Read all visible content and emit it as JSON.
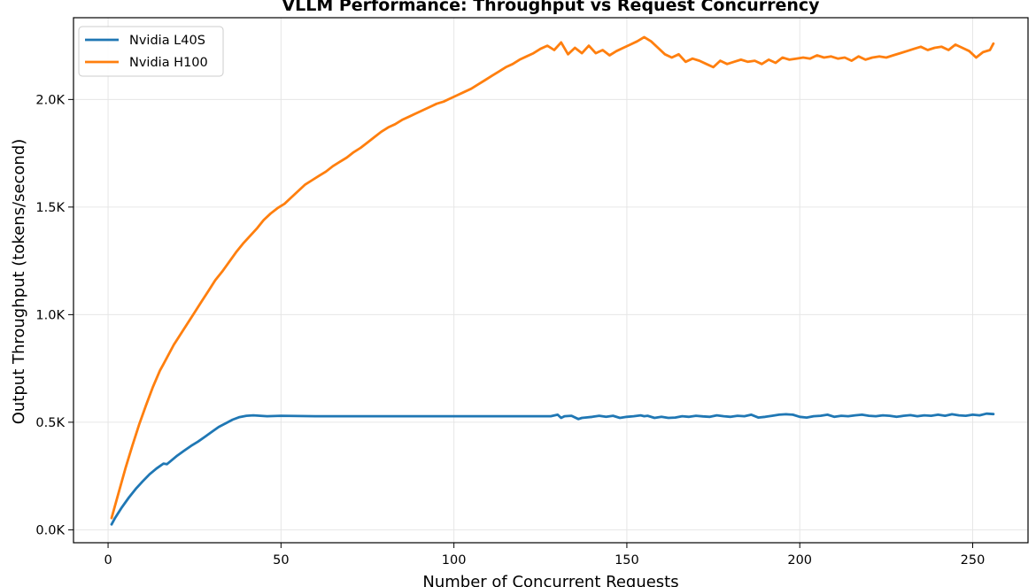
{
  "chart_data": {
    "type": "line",
    "title": "VLLM Performance: Throughput vs Request Concurrency",
    "xlabel": "Number of Concurrent Requests",
    "ylabel": "Output Throughput (tokens/second)",
    "xlim": [
      -10,
      266
    ],
    "ylim": [
      -60,
      2380
    ],
    "xticks": [
      0,
      50,
      100,
      150,
      200,
      250
    ],
    "xtick_labels": [
      "0",
      "50",
      "100",
      "150",
      "200",
      "250"
    ],
    "yticks": [
      0,
      500,
      1000,
      1500,
      2000
    ],
    "ytick_labels": [
      "0.0K",
      "0.5K",
      "1.0K",
      "1.5K",
      "2.0K"
    ],
    "grid": true,
    "legend_position": "top-left",
    "series": [
      {
        "name": "Nvidia L40S",
        "color": "#1f77b4",
        "x": [
          1,
          2,
          4,
          6,
          8,
          10,
          12,
          14,
          16,
          17,
          18,
          20,
          22,
          24,
          26,
          28,
          30,
          32,
          34,
          36,
          38,
          40,
          42,
          44,
          46,
          50,
          60,
          70,
          80,
          90,
          100,
          110,
          120,
          128,
          130,
          131,
          132,
          134,
          136,
          137,
          138,
          140,
          142,
          144,
          146,
          148,
          150,
          152,
          154,
          155,
          156,
          158,
          160,
          162,
          164,
          166,
          168,
          170,
          172,
          174,
          176,
          178,
          180,
          182,
          184,
          186,
          188,
          190,
          192,
          194,
          196,
          198,
          200,
          202,
          204,
          206,
          208,
          210,
          212,
          214,
          216,
          218,
          220,
          222,
          224,
          226,
          228,
          230,
          232,
          234,
          236,
          238,
          240,
          242,
          244,
          246,
          248,
          250,
          252,
          254,
          256
        ],
        "y": [
          25,
          55,
          105,
          150,
          190,
          225,
          258,
          285,
          308,
          305,
          318,
          345,
          368,
          390,
          410,
          432,
          455,
          478,
          495,
          512,
          524,
          530,
          532,
          530,
          528,
          530,
          528,
          528,
          528,
          528,
          528,
          528,
          528,
          528,
          535,
          520,
          528,
          530,
          515,
          520,
          522,
          525,
          530,
          525,
          530,
          520,
          525,
          528,
          532,
          528,
          530,
          520,
          525,
          520,
          522,
          528,
          525,
          530,
          527,
          525,
          532,
          528,
          525,
          530,
          528,
          535,
          522,
          525,
          530,
          535,
          537,
          535,
          525,
          522,
          528,
          530,
          535,
          525,
          530,
          528,
          532,
          535,
          530,
          528,
          532,
          530,
          525,
          530,
          533,
          528,
          532,
          530,
          535,
          530,
          537,
          532,
          530,
          535,
          532,
          540,
          538
        ]
      },
      {
        "name": "Nvidia H100",
        "color": "#ff7f0e",
        "x": [
          1,
          3,
          5,
          7,
          9,
          11,
          13,
          15,
          16,
          17,
          19,
          21,
          23,
          25,
          27,
          29,
          31,
          33,
          35,
          37,
          39,
          41,
          43,
          45,
          47,
          49,
          51,
          53,
          55,
          57,
          59,
          61,
          63,
          65,
          67,
          69,
          71,
          73,
          75,
          77,
          79,
          81,
          83,
          85,
          87,
          89,
          91,
          93,
          95,
          97,
          99,
          101,
          103,
          105,
          107,
          109,
          111,
          113,
          115,
          117,
          119,
          121,
          123,
          125,
          127,
          129,
          131,
          133,
          135,
          137,
          139,
          141,
          143,
          145,
          147,
          149,
          151,
          153,
          155,
          157,
          159,
          161,
          163,
          165,
          167,
          169,
          171,
          173,
          175,
          177,
          179,
          181,
          183,
          185,
          187,
          189,
          191,
          193,
          195,
          197,
          199,
          201,
          203,
          205,
          207,
          209,
          211,
          213,
          215,
          217,
          219,
          221,
          223,
          225,
          227,
          229,
          231,
          233,
          235,
          237,
          239,
          241,
          243,
          245,
          247,
          249,
          251,
          253,
          255,
          256
        ],
        "y": [
          55,
          170,
          285,
          390,
          490,
          580,
          665,
          740,
          770,
          800,
          860,
          910,
          960,
          1010,
          1060,
          1110,
          1160,
          1200,
          1245,
          1290,
          1330,
          1365,
          1400,
          1440,
          1470,
          1495,
          1515,
          1545,
          1575,
          1605,
          1625,
          1645,
          1665,
          1690,
          1710,
          1730,
          1755,
          1775,
          1800,
          1825,
          1850,
          1870,
          1885,
          1905,
          1920,
          1935,
          1950,
          1965,
          1980,
          1990,
          2005,
          2020,
          2035,
          2050,
          2070,
          2090,
          2110,
          2130,
          2150,
          2165,
          2185,
          2200,
          2215,
          2235,
          2250,
          2230,
          2265,
          2210,
          2240,
          2215,
          2250,
          2215,
          2230,
          2205,
          2225,
          2240,
          2255,
          2270,
          2290,
          2270,
          2240,
          2210,
          2195,
          2210,
          2175,
          2190,
          2180,
          2165,
          2150,
          2180,
          2165,
          2175,
          2185,
          2175,
          2180,
          2165,
          2185,
          2170,
          2195,
          2185,
          2190,
          2195,
          2190,
          2205,
          2195,
          2200,
          2190,
          2195,
          2180,
          2200,
          2185,
          2195,
          2200,
          2195,
          2205,
          2215,
          2225,
          2235,
          2245,
          2230,
          2240,
          2245,
          2230,
          2255,
          2240,
          2225,
          2195,
          2220,
          2230,
          2260
        ]
      }
    ]
  }
}
